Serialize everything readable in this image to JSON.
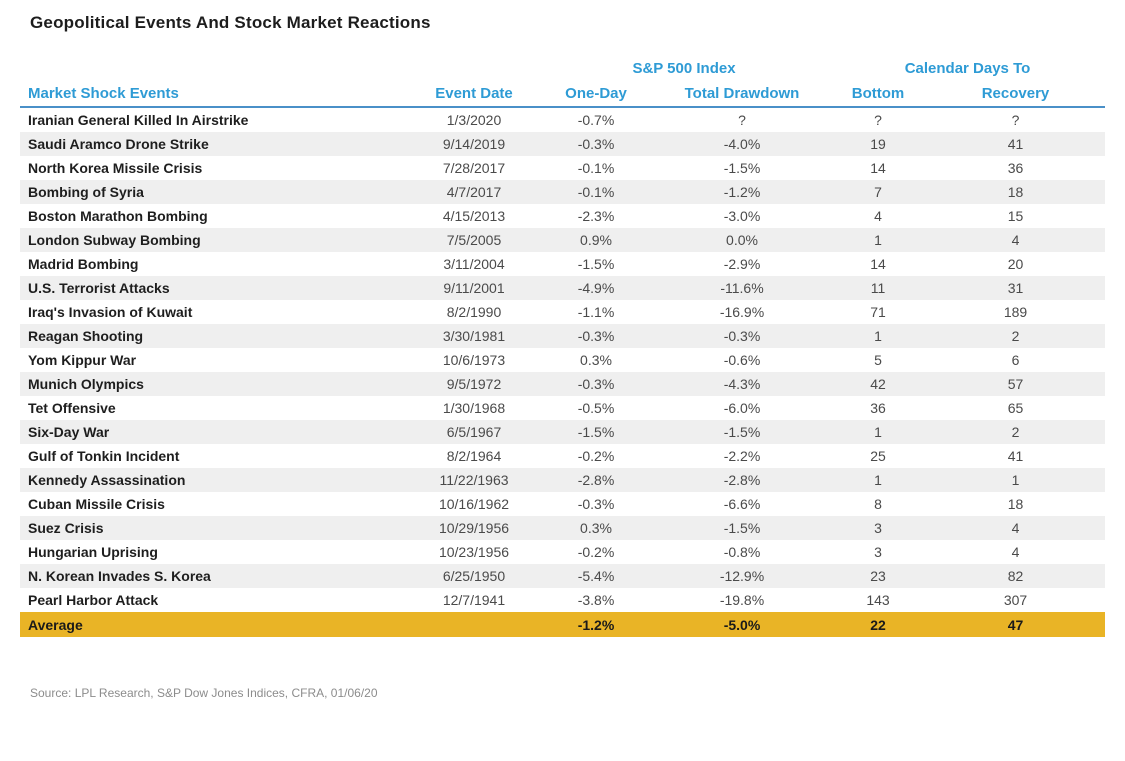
{
  "title": "Geopolitical Events And Stock Market Reactions",
  "source": "Source: LPL Research, S&P Dow Jones Indices, CFRA, 01/06/20",
  "colors": {
    "header_blue": "#2E9BD5",
    "header_rule": "#4A90C8",
    "row_stripe": "#EFEFEF",
    "average_gold": "#E9B426"
  },
  "chart_data": {
    "type": "table",
    "title": "Geopolitical Events And Stock Market Reactions",
    "group_headers": {
      "sp500": "S&P 500 Index",
      "calendar": "Calendar Days To"
    },
    "columns": {
      "events": "Market Shock Events",
      "date": "Event Date",
      "one_day": "One-Day",
      "drawdown": "Total Drawdown",
      "bottom": "Bottom",
      "recovery": "Recovery"
    },
    "rows": [
      {
        "event": "Iranian General Killed In Airstrike",
        "date": "1/3/2020",
        "one_day": "-0.7%",
        "drawdown": "?",
        "bottom": "?",
        "recovery": "?"
      },
      {
        "event": "Saudi Aramco Drone Strike",
        "date": "9/14/2019",
        "one_day": "-0.3%",
        "drawdown": "-4.0%",
        "bottom": "19",
        "recovery": "41"
      },
      {
        "event": "North Korea Missile Crisis",
        "date": "7/28/2017",
        "one_day": "-0.1%",
        "drawdown": "-1.5%",
        "bottom": "14",
        "recovery": "36"
      },
      {
        "event": "Bombing of Syria",
        "date": "4/7/2017",
        "one_day": "-0.1%",
        "drawdown": "-1.2%",
        "bottom": "7",
        "recovery": "18"
      },
      {
        "event": "Boston Marathon Bombing",
        "date": "4/15/2013",
        "one_day": "-2.3%",
        "drawdown": "-3.0%",
        "bottom": "4",
        "recovery": "15"
      },
      {
        "event": "London Subway Bombing",
        "date": "7/5/2005",
        "one_day": "0.9%",
        "drawdown": "0.0%",
        "bottom": "1",
        "recovery": "4"
      },
      {
        "event": "Madrid Bombing",
        "date": "3/11/2004",
        "one_day": "-1.5%",
        "drawdown": "-2.9%",
        "bottom": "14",
        "recovery": "20"
      },
      {
        "event": "U.S. Terrorist Attacks",
        "date": "9/11/2001",
        "one_day": "-4.9%",
        "drawdown": "-11.6%",
        "bottom": "11",
        "recovery": "31"
      },
      {
        "event": "Iraq's Invasion of Kuwait",
        "date": "8/2/1990",
        "one_day": "-1.1%",
        "drawdown": "-16.9%",
        "bottom": "71",
        "recovery": "189"
      },
      {
        "event": "Reagan Shooting",
        "date": "3/30/1981",
        "one_day": "-0.3%",
        "drawdown": "-0.3%",
        "bottom": "1",
        "recovery": "2"
      },
      {
        "event": "Yom Kippur War",
        "date": "10/6/1973",
        "one_day": "0.3%",
        "drawdown": "-0.6%",
        "bottom": "5",
        "recovery": "6"
      },
      {
        "event": "Munich Olympics",
        "date": "9/5/1972",
        "one_day": "-0.3%",
        "drawdown": "-4.3%",
        "bottom": "42",
        "recovery": "57"
      },
      {
        "event": "Tet Offensive",
        "date": "1/30/1968",
        "one_day": "-0.5%",
        "drawdown": "-6.0%",
        "bottom": "36",
        "recovery": "65"
      },
      {
        "event": "Six-Day War",
        "date": "6/5/1967",
        "one_day": "-1.5%",
        "drawdown": "-1.5%",
        "bottom": "1",
        "recovery": "2"
      },
      {
        "event": "Gulf of Tonkin Incident",
        "date": "8/2/1964",
        "one_day": "-0.2%",
        "drawdown": "-2.2%",
        "bottom": "25",
        "recovery": "41"
      },
      {
        "event": "Kennedy Assassination",
        "date": "11/22/1963",
        "one_day": "-2.8%",
        "drawdown": "-2.8%",
        "bottom": "1",
        "recovery": "1"
      },
      {
        "event": "Cuban Missile Crisis",
        "date": "10/16/1962",
        "one_day": "-0.3%",
        "drawdown": "-6.6%",
        "bottom": "8",
        "recovery": "18"
      },
      {
        "event": "Suez Crisis",
        "date": "10/29/1956",
        "one_day": "0.3%",
        "drawdown": "-1.5%",
        "bottom": "3",
        "recovery": "4"
      },
      {
        "event": "Hungarian Uprising",
        "date": "10/23/1956",
        "one_day": "-0.2%",
        "drawdown": "-0.8%",
        "bottom": "3",
        "recovery": "4"
      },
      {
        "event": "N. Korean Invades S. Korea",
        "date": "6/25/1950",
        "one_day": "-5.4%",
        "drawdown": "-12.9%",
        "bottom": "23",
        "recovery": "82"
      },
      {
        "event": "Pearl Harbor Attack",
        "date": "12/7/1941",
        "one_day": "-3.8%",
        "drawdown": "-19.8%",
        "bottom": "143",
        "recovery": "307"
      }
    ],
    "average": {
      "label": "Average",
      "date": "",
      "one_day": "-1.2%",
      "drawdown": "-5.0%",
      "bottom": "22",
      "recovery": "47"
    }
  }
}
